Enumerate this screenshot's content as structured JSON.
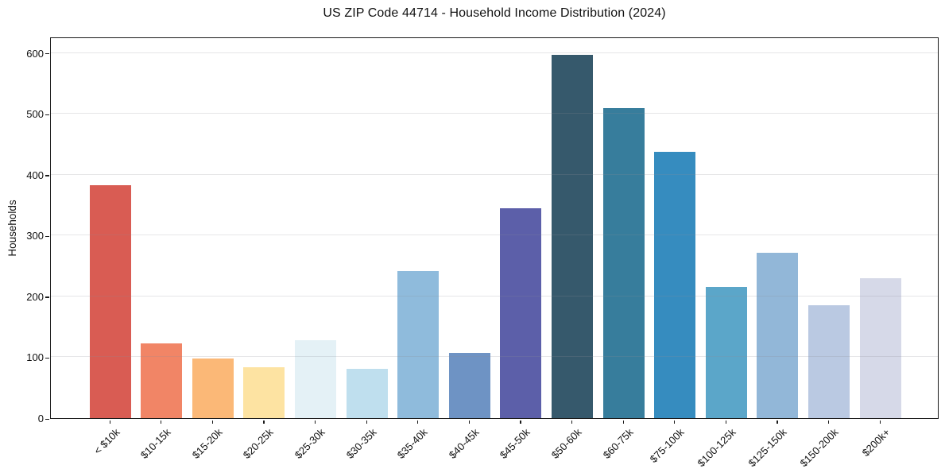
{
  "chart_data": {
    "type": "bar",
    "title": "US ZIP Code 44714 - Household Income Distribution (2024)",
    "xlabel": "",
    "ylabel": "Households",
    "categories": [
      "< $10k",
      "$10-15k",
      "$15-20k",
      "$20-25k",
      "$25-30k",
      "$30-35k",
      "$35-40k",
      "$40-45k",
      "$45-50k",
      "$50-60k",
      "$60-75k",
      "$75-100k",
      "$100-125k",
      "$125-150k",
      "$150-200k",
      "$200k+"
    ],
    "values": [
      383,
      123,
      98,
      84,
      128,
      81,
      242,
      107,
      345,
      597,
      510,
      437,
      215,
      272,
      185,
      230
    ],
    "bar_colors": [
      "#d95c53",
      "#f18566",
      "#fbb877",
      "#fde3a2",
      "#e4f1f6",
      "#bfdfee",
      "#8fbbdc",
      "#6e93c4",
      "#5c5fa9",
      "#36596c",
      "#377d9c",
      "#368cbf",
      "#5ba6c9",
      "#92b7d8",
      "#bac9e2",
      "#d6d9e8"
    ],
    "yticks": [
      0,
      100,
      200,
      300,
      400,
      500,
      600
    ],
    "ylim": [
      0,
      627
    ],
    "grid": "horizontal",
    "legend": "none",
    "background_color": "#ffffff",
    "spine_color": "#1a1a1a",
    "text_color": "#111111"
  }
}
